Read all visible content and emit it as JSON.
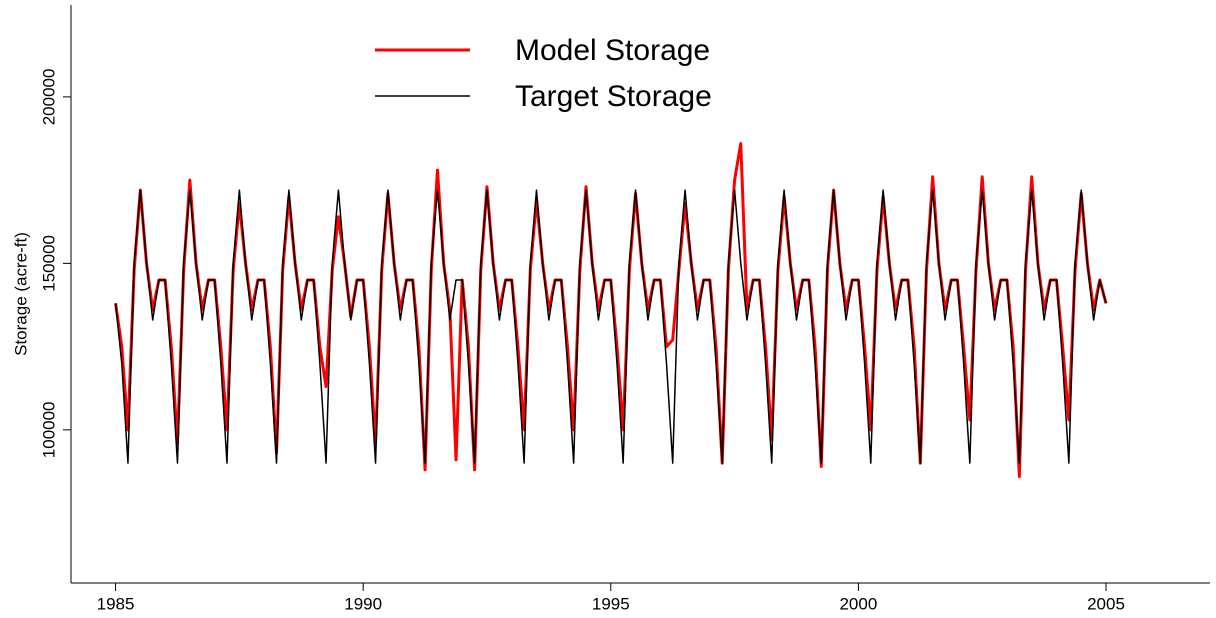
{
  "chart_data": {
    "type": "line",
    "ylabel": "Storage (acre-ft)",
    "xlim": [
      1984.1,
      2007.1
    ],
    "ylim": [
      54000,
      227600
    ],
    "xticks": [
      1985,
      1990,
      1995,
      2000,
      2005
    ],
    "yticks": [
      100000,
      150000,
      200000
    ],
    "legend": "top",
    "x": [
      1985,
      1985.125,
      1985.25,
      1985.375,
      1985.5,
      1985.625,
      1985.75,
      1985.875,
      1986,
      1986.125,
      1986.25,
      1986.375,
      1986.5,
      1986.625,
      1986.75,
      1986.875,
      1987,
      1987.125,
      1987.25,
      1987.375,
      1987.5,
      1987.625,
      1987.75,
      1987.875,
      1988,
      1988.125,
      1988.25,
      1988.375,
      1988.5,
      1988.625,
      1988.75,
      1988.875,
      1989,
      1989.125,
      1989.25,
      1989.375,
      1989.5,
      1989.625,
      1989.75,
      1989.875,
      1990,
      1990.125,
      1990.25,
      1990.375,
      1990.5,
      1990.625,
      1990.75,
      1990.875,
      1991,
      1991.125,
      1991.25,
      1991.375,
      1991.5,
      1991.625,
      1991.75,
      1991.875,
      1992,
      1992.125,
      1992.25,
      1992.375,
      1992.5,
      1992.625,
      1992.75,
      1992.875,
      1993,
      1993.125,
      1993.25,
      1993.375,
      1993.5,
      1993.625,
      1993.75,
      1993.875,
      1994,
      1994.125,
      1994.25,
      1994.375,
      1994.5,
      1994.625,
      1994.75,
      1994.875,
      1995,
      1995.125,
      1995.25,
      1995.375,
      1995.5,
      1995.625,
      1995.75,
      1995.875,
      1996,
      1996.125,
      1996.25,
      1996.375,
      1996.5,
      1996.625,
      1996.75,
      1996.875,
      1997,
      1997.125,
      1997.25,
      1997.375,
      1997.5,
      1997.625,
      1997.75,
      1997.875,
      1998,
      1998.125,
      1998.25,
      1998.375,
      1998.5,
      1998.625,
      1998.75,
      1998.875,
      1999,
      1999.125,
      1999.25,
      1999.375,
      1999.5,
      1999.625,
      1999.75,
      1999.875,
      2000,
      2000.125,
      2000.25,
      2000.375,
      2000.5,
      2000.625,
      2000.75,
      2000.875,
      2001,
      2001.125,
      2001.25,
      2001.375,
      2001.5,
      2001.625,
      2001.75,
      2001.875,
      2002,
      2002.125,
      2002.25,
      2002.375,
      2002.5,
      2002.625,
      2002.75,
      2002.875,
      2003,
      2003.125,
      2003.25,
      2003.375,
      2003.5,
      2003.625,
      2003.75,
      2003.875,
      2004,
      2004.125,
      2004.25,
      2004.375,
      2004.5,
      2004.625,
      2004.75,
      2004.875,
      2005
    ],
    "series": [
      {
        "name": "Model Storage",
        "color": "#ff0000",
        "width": 3,
        "values": [
          138000,
          125000,
          100000,
          148000,
          172000,
          150000,
          136000,
          145000,
          145000,
          125000,
          96000,
          148000,
          175000,
          150000,
          136000,
          145000,
          145000,
          125000,
          100000,
          148000,
          168000,
          150000,
          136000,
          145000,
          145000,
          125000,
          93000,
          148000,
          170000,
          150000,
          136000,
          145000,
          145000,
          125000,
          113000,
          148000,
          164000,
          150000,
          134000,
          145000,
          145000,
          125000,
          96000,
          148000,
          171000,
          150000,
          136000,
          145000,
          145000,
          125000,
          88000,
          148000,
          178000,
          150000,
          136000,
          91000,
          145000,
          125000,
          88000,
          148000,
          173000,
          150000,
          136000,
          145000,
          145000,
          125000,
          100000,
          148000,
          169000,
          150000,
          136000,
          145000,
          145000,
          125000,
          100000,
          148000,
          173000,
          150000,
          136000,
          145000,
          145000,
          125000,
          100000,
          148000,
          171000,
          150000,
          136000,
          145000,
          145000,
          125000,
          127000,
          148000,
          168000,
          150000,
          136000,
          145000,
          145000,
          125000,
          90000,
          148000,
          175000,
          186000,
          136000,
          145000,
          145000,
          125000,
          97000,
          148000,
          170000,
          150000,
          136000,
          145000,
          145000,
          125000,
          89000,
          148000,
          172000,
          150000,
          136000,
          145000,
          145000,
          125000,
          100000,
          148000,
          170000,
          150000,
          136000,
          145000,
          145000,
          125000,
          90000,
          148000,
          176000,
          150000,
          136000,
          145000,
          145000,
          125000,
          103000,
          148000,
          176000,
          150000,
          136000,
          145000,
          145000,
          125000,
          86000,
          148000,
          176000,
          150000,
          136000,
          145000,
          145000,
          125000,
          103000,
          148000,
          171000,
          150000,
          136000,
          145000,
          138000
        ]
      },
      {
        "name": "Target Storage",
        "color": "#000000",
        "width": 1.5,
        "values": [
          138000,
          120000,
          90000,
          150000,
          172000,
          150000,
          133000,
          145000,
          145000,
          120000,
          90000,
          150000,
          172000,
          150000,
          133000,
          145000,
          145000,
          120000,
          90000,
          150000,
          172000,
          150000,
          133000,
          145000,
          145000,
          120000,
          90000,
          150000,
          172000,
          150000,
          133000,
          145000,
          145000,
          120000,
          90000,
          150000,
          172000,
          150000,
          133000,
          145000,
          145000,
          120000,
          90000,
          150000,
          172000,
          150000,
          133000,
          145000,
          145000,
          120000,
          90000,
          150000,
          172000,
          150000,
          133000,
          145000,
          145000,
          120000,
          90000,
          150000,
          172000,
          150000,
          133000,
          145000,
          145000,
          120000,
          90000,
          150000,
          172000,
          150000,
          133000,
          145000,
          145000,
          120000,
          90000,
          150000,
          172000,
          150000,
          133000,
          145000,
          145000,
          120000,
          90000,
          150000,
          172000,
          150000,
          133000,
          145000,
          145000,
          120000,
          90000,
          150000,
          172000,
          150000,
          133000,
          145000,
          145000,
          120000,
          90000,
          150000,
          172000,
          150000,
          133000,
          145000,
          145000,
          120000,
          90000,
          150000,
          172000,
          150000,
          133000,
          145000,
          145000,
          120000,
          90000,
          150000,
          172000,
          150000,
          133000,
          145000,
          145000,
          120000,
          90000,
          150000,
          172000,
          150000,
          133000,
          145000,
          145000,
          120000,
          90000,
          150000,
          172000,
          150000,
          133000,
          145000,
          145000,
          120000,
          90000,
          150000,
          172000,
          150000,
          133000,
          145000,
          145000,
          120000,
          90000,
          150000,
          172000,
          150000,
          133000,
          145000,
          145000,
          120000,
          90000,
          150000,
          172000,
          150000,
          133000,
          145000,
          138000
        ]
      }
    ]
  }
}
